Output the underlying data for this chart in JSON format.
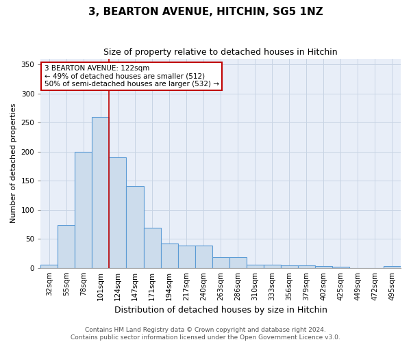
{
  "title": "3, BEARTON AVENUE, HITCHIN, SG5 1NZ",
  "subtitle": "Size of property relative to detached houses in Hitchin",
  "xlabel": "Distribution of detached houses by size in Hitchin",
  "ylabel": "Number of detached properties",
  "categories": [
    "32sqm",
    "55sqm",
    "78sqm",
    "101sqm",
    "124sqm",
    "147sqm",
    "171sqm",
    "194sqm",
    "217sqm",
    "240sqm",
    "263sqm",
    "286sqm",
    "310sqm",
    "333sqm",
    "356sqm",
    "379sqm",
    "402sqm",
    "425sqm",
    "449sqm",
    "472sqm",
    "495sqm"
  ],
  "values": [
    6,
    74,
    200,
    260,
    190,
    141,
    69,
    42,
    39,
    39,
    19,
    18,
    6,
    6,
    4,
    4,
    3,
    2,
    0,
    0,
    3
  ],
  "bar_color": "#ccdcec",
  "bar_edge_color": "#5b9bd5",
  "vline_index": 3.5,
  "vline_color": "#c00000",
  "annotation_text": "3 BEARTON AVENUE: 122sqm\n← 49% of detached houses are smaller (512)\n50% of semi-detached houses are larger (532) →",
  "annotation_box_color": "#ffffff",
  "annotation_box_edge": "#c00000",
  "footer": "Contains HM Land Registry data © Crown copyright and database right 2024.\nContains public sector information licensed under the Open Government Licence v3.0.",
  "ylim": [
    0,
    360
  ],
  "yticks": [
    0,
    50,
    100,
    150,
    200,
    250,
    300,
    350
  ],
  "title_fontsize": 11,
  "subtitle_fontsize": 9,
  "xlabel_fontsize": 9,
  "ylabel_fontsize": 8,
  "tick_fontsize": 7.5,
  "footer_fontsize": 6.5,
  "background_color": "#ffffff",
  "plot_bg_color": "#e8eef8",
  "grid_color": "#c8d4e4"
}
